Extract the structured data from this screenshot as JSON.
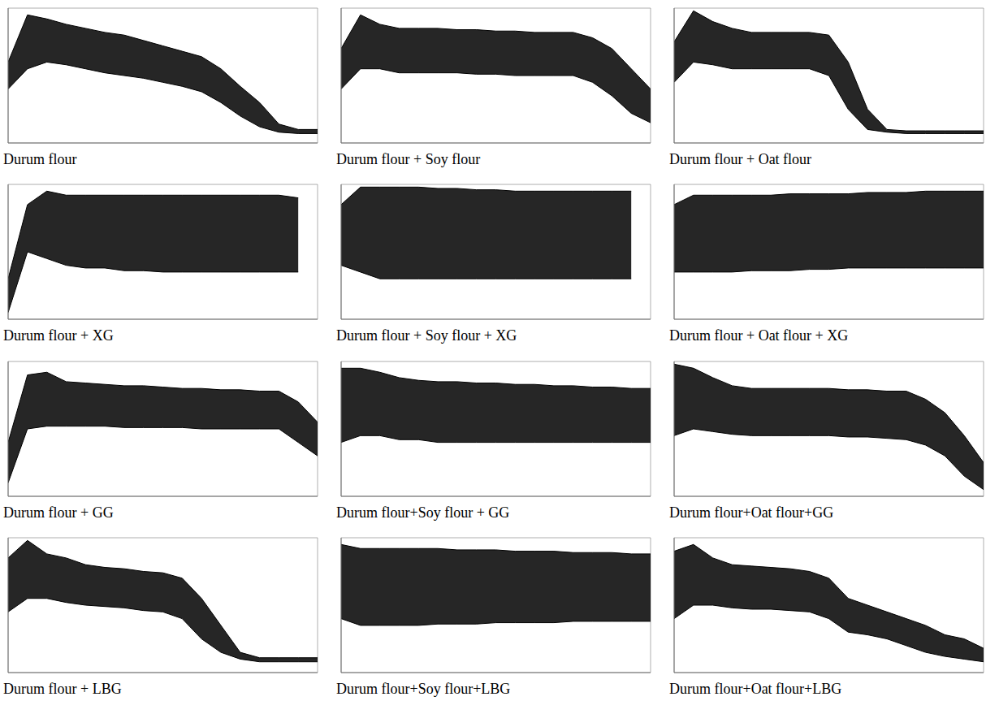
{
  "chart_data": [
    {
      "type": "area",
      "title": "Durum flour",
      "color": "#000000",
      "grid": true,
      "tick_labels": false,
      "xlim": [
        0,
        16
      ],
      "ylim": [
        0,
        100
      ],
      "xticks": [
        0,
        2,
        4,
        6,
        8,
        10,
        12,
        14,
        16
      ],
      "yticks": [
        0,
        20,
        40,
        60,
        80,
        100
      ],
      "x": [
        0,
        1,
        2,
        3,
        4,
        5,
        6,
        7,
        8,
        9,
        10,
        11,
        12,
        13,
        14,
        15,
        16
      ],
      "values": [
        [
          40,
          60
        ],
        [
          55,
          95
        ],
        [
          60,
          92
        ],
        [
          58,
          88
        ],
        [
          55,
          85
        ],
        [
          52,
          82
        ],
        [
          50,
          80
        ],
        [
          48,
          76
        ],
        [
          45,
          72
        ],
        [
          42,
          68
        ],
        [
          38,
          64
        ],
        [
          30,
          55
        ],
        [
          20,
          42
        ],
        [
          12,
          30
        ],
        [
          8,
          14
        ],
        [
          7,
          10
        ],
        [
          7,
          10
        ]
      ]
    },
    {
      "type": "area",
      "title": "Durum flour + Soy flour",
      "color": "#000000",
      "grid": true,
      "tick_labels": false,
      "xlim": [
        0,
        16
      ],
      "ylim": [
        0,
        100
      ],
      "xticks": [
        0,
        2,
        4,
        6,
        8,
        10,
        12,
        14,
        16
      ],
      "yticks": [
        0,
        20,
        40,
        60,
        80,
        100
      ],
      "x": [
        0,
        1,
        2,
        3,
        4,
        5,
        6,
        7,
        8,
        9,
        10,
        11,
        12,
        13,
        14,
        15,
        16
      ],
      "values": [
        [
          40,
          70
        ],
        [
          55,
          95
        ],
        [
          55,
          88
        ],
        [
          52,
          85
        ],
        [
          52,
          85
        ],
        [
          52,
          85
        ],
        [
          52,
          84
        ],
        [
          51,
          84
        ],
        [
          51,
          83
        ],
        [
          50,
          83
        ],
        [
          50,
          82
        ],
        [
          50,
          82
        ],
        [
          50,
          82
        ],
        [
          45,
          78
        ],
        [
          35,
          70
        ],
        [
          22,
          55
        ],
        [
          15,
          40
        ]
      ]
    },
    {
      "type": "area",
      "title": "Durum flour + Oat flour",
      "color": "#000000",
      "grid": true,
      "tick_labels": false,
      "xlim": [
        0,
        16
      ],
      "ylim": [
        0,
        100
      ],
      "xticks": [
        0,
        2,
        4,
        6,
        8,
        10,
        12,
        14,
        16
      ],
      "yticks": [
        0,
        20,
        40,
        60,
        80,
        100
      ],
      "x": [
        0,
        1,
        2,
        3,
        4,
        5,
        6,
        7,
        8,
        9,
        10,
        11,
        12,
        13,
        14,
        15,
        16
      ],
      "values": [
        [
          45,
          75
        ],
        [
          60,
          98
        ],
        [
          58,
          90
        ],
        [
          55,
          85
        ],
        [
          55,
          82
        ],
        [
          55,
          82
        ],
        [
          55,
          82
        ],
        [
          55,
          82
        ],
        [
          50,
          80
        ],
        [
          25,
          60
        ],
        [
          10,
          25
        ],
        [
          8,
          10
        ],
        [
          7,
          9
        ],
        [
          7,
          9
        ],
        [
          7,
          9
        ],
        [
          7,
          9
        ],
        [
          7,
          9
        ]
      ]
    },
    {
      "type": "area",
      "title": "Durum flour + XG",
      "color": "#000000",
      "grid": true,
      "tick_labels": false,
      "xlim": [
        0,
        16
      ],
      "ylim": [
        0,
        100
      ],
      "xticks": [
        0,
        2,
        4,
        6,
        8,
        10,
        12,
        14,
        16
      ],
      "yticks": [
        0,
        20,
        40,
        60,
        80,
        100
      ],
      "x": [
        0,
        1,
        2,
        3,
        4,
        5,
        6,
        7,
        8,
        9,
        10,
        11,
        12,
        13,
        14,
        15,
        16
      ],
      "values": [
        [
          5,
          30
        ],
        [
          50,
          85
        ],
        [
          45,
          95
        ],
        [
          40,
          92
        ],
        [
          38,
          92
        ],
        [
          38,
          92
        ],
        [
          36,
          92
        ],
        [
          36,
          92
        ],
        [
          35,
          92
        ],
        [
          35,
          92
        ],
        [
          35,
          92
        ],
        [
          35,
          92
        ],
        [
          35,
          92
        ],
        [
          35,
          92
        ],
        [
          35,
          92
        ],
        [
          35,
          90
        ],
        null
      ]
    },
    {
      "type": "area",
      "title": "Durum flour + Soy flour + XG",
      "color": "#000000",
      "grid": true,
      "tick_labels": false,
      "xlim": [
        0,
        16
      ],
      "ylim": [
        0,
        100
      ],
      "xticks": [
        0,
        2,
        4,
        6,
        8,
        10,
        12,
        14,
        16
      ],
      "yticks": [
        0,
        20,
        40,
        60,
        80,
        100
      ],
      "x": [
        0,
        1,
        2,
        3,
        4,
        5,
        6,
        7,
        8,
        9,
        10,
        11,
        12,
        13,
        14,
        15,
        16
      ],
      "values": [
        [
          40,
          85
        ],
        [
          35,
          98
        ],
        [
          30,
          98
        ],
        [
          30,
          98
        ],
        [
          30,
          98
        ],
        [
          30,
          97
        ],
        [
          30,
          97
        ],
        [
          30,
          96
        ],
        [
          30,
          96
        ],
        [
          30,
          95
        ],
        [
          30,
          95
        ],
        [
          30,
          95
        ],
        [
          30,
          95
        ],
        [
          30,
          95
        ],
        [
          30,
          95
        ],
        [
          30,
          95
        ],
        null
      ]
    },
    {
      "type": "area",
      "title": "Durum flour + Oat flour + XG",
      "color": "#000000",
      "grid": true,
      "tick_labels": false,
      "xlim": [
        0,
        16
      ],
      "ylim": [
        0,
        100
      ],
      "xticks": [
        0,
        2,
        4,
        6,
        8,
        10,
        12,
        14,
        16
      ],
      "yticks": [
        0,
        20,
        40,
        60,
        80,
        100
      ],
      "x": [
        0,
        1,
        2,
        3,
        4,
        5,
        6,
        7,
        8,
        9,
        10,
        11,
        12,
        13,
        14,
        15,
        16
      ],
      "values": [
        [
          35,
          85
        ],
        [
          35,
          92
        ],
        [
          35,
          92
        ],
        [
          35,
          92
        ],
        [
          36,
          92
        ],
        [
          36,
          92
        ],
        [
          36,
          93
        ],
        [
          37,
          93
        ],
        [
          37,
          93
        ],
        [
          38,
          93
        ],
        [
          38,
          94
        ],
        [
          38,
          94
        ],
        [
          38,
          94
        ],
        [
          38,
          95
        ],
        [
          38,
          95
        ],
        [
          38,
          95
        ],
        [
          38,
          95
        ]
      ]
    },
    {
      "type": "area",
      "title": "Durum flour + GG",
      "color": "#000000",
      "grid": true,
      "tick_labels": false,
      "xlim": [
        0,
        16
      ],
      "ylim": [
        0,
        100
      ],
      "xticks": [
        0,
        2,
        4,
        6,
        8,
        10,
        12,
        14,
        16
      ],
      "yticks": [
        0,
        20,
        40,
        60,
        80,
        100
      ],
      "x": [
        0,
        1,
        2,
        3,
        4,
        5,
        6,
        7,
        8,
        9,
        10,
        11,
        12,
        13,
        14,
        15,
        16
      ],
      "values": [
        [
          10,
          40
        ],
        [
          50,
          90
        ],
        [
          52,
          92
        ],
        [
          52,
          85
        ],
        [
          52,
          84
        ],
        [
          52,
          83
        ],
        [
          51,
          82
        ],
        [
          51,
          82
        ],
        [
          51,
          81
        ],
        [
          51,
          80
        ],
        [
          50,
          80
        ],
        [
          50,
          79
        ],
        [
          50,
          79
        ],
        [
          50,
          78
        ],
        [
          50,
          78
        ],
        [
          40,
          70
        ],
        [
          30,
          55
        ]
      ]
    },
    {
      "type": "area",
      "title": "Durum flour+Soy flour + GG",
      "color": "#000000",
      "grid": true,
      "tick_labels": false,
      "xlim": [
        0,
        16
      ],
      "ylim": [
        0,
        100
      ],
      "xticks": [
        0,
        2,
        4,
        6,
        8,
        10,
        12,
        14,
        16
      ],
      "yticks": [
        0,
        20,
        40,
        60,
        80,
        100
      ],
      "x": [
        0,
        1,
        2,
        3,
        4,
        5,
        6,
        7,
        8,
        9,
        10,
        11,
        12,
        13,
        14,
        15,
        16
      ],
      "values": [
        [
          40,
          95
        ],
        [
          45,
          95
        ],
        [
          45,
          92
        ],
        [
          42,
          88
        ],
        [
          42,
          86
        ],
        [
          40,
          85
        ],
        [
          40,
          85
        ],
        [
          40,
          84
        ],
        [
          40,
          84
        ],
        [
          40,
          83
        ],
        [
          40,
          83
        ],
        [
          40,
          82
        ],
        [
          40,
          82
        ],
        [
          40,
          81
        ],
        [
          40,
          81
        ],
        [
          40,
          80
        ],
        [
          40,
          80
        ]
      ]
    },
    {
      "type": "area",
      "title": "Durum flour+Oat flour+GG",
      "color": "#000000",
      "grid": true,
      "tick_labels": false,
      "xlim": [
        0,
        16
      ],
      "ylim": [
        0,
        100
      ],
      "xticks": [
        0,
        2,
        4,
        6,
        8,
        10,
        12,
        14,
        16
      ],
      "yticks": [
        0,
        20,
        40,
        60,
        80,
        100
      ],
      "x": [
        0,
        1,
        2,
        3,
        4,
        5,
        6,
        7,
        8,
        9,
        10,
        11,
        12,
        13,
        14,
        15,
        16
      ],
      "values": [
        [
          45,
          98
        ],
        [
          50,
          95
        ],
        [
          48,
          88
        ],
        [
          46,
          82
        ],
        [
          45,
          80
        ],
        [
          45,
          80
        ],
        [
          45,
          80
        ],
        [
          45,
          80
        ],
        [
          45,
          80
        ],
        [
          44,
          79
        ],
        [
          44,
          79
        ],
        [
          43,
          78
        ],
        [
          42,
          78
        ],
        [
          38,
          72
        ],
        [
          30,
          62
        ],
        [
          15,
          45
        ],
        [
          5,
          25
        ]
      ]
    },
    {
      "type": "area",
      "title": "Durum flour + LBG",
      "color": "#000000",
      "grid": true,
      "tick_labels": false,
      "xlim": [
        0,
        16
      ],
      "ylim": [
        0,
        100
      ],
      "xticks": [
        0,
        2,
        4,
        6,
        8,
        10,
        12,
        14,
        16
      ],
      "yticks": [
        0,
        20,
        40,
        60,
        80,
        100
      ],
      "x": [
        0,
        1,
        2,
        3,
        4,
        5,
        6,
        7,
        8,
        9,
        10,
        11,
        12,
        13,
        14,
        15,
        16
      ],
      "values": [
        [
          45,
          85
        ],
        [
          55,
          98
        ],
        [
          55,
          88
        ],
        [
          52,
          85
        ],
        [
          50,
          80
        ],
        [
          49,
          78
        ],
        [
          48,
          77
        ],
        [
          46,
          75
        ],
        [
          45,
          74
        ],
        [
          40,
          70
        ],
        [
          25,
          55
        ],
        [
          15,
          35
        ],
        [
          10,
          15
        ],
        [
          8,
          11
        ],
        [
          8,
          11
        ],
        [
          8,
          11
        ],
        [
          8,
          11
        ]
      ]
    },
    {
      "type": "area",
      "title": "Durum flour+Soy flour+LBG",
      "color": "#000000",
      "grid": true,
      "tick_labels": false,
      "xlim": [
        0,
        16
      ],
      "ylim": [
        0,
        100
      ],
      "xticks": [
        0,
        2,
        4,
        6,
        8,
        10,
        12,
        14,
        16
      ],
      "yticks": [
        0,
        20,
        40,
        60,
        80,
        100
      ],
      "x": [
        0,
        1,
        2,
        3,
        4,
        5,
        6,
        7,
        8,
        9,
        10,
        11,
        12,
        13,
        14,
        15,
        16
      ],
      "values": [
        [
          40,
          95
        ],
        [
          35,
          92
        ],
        [
          35,
          92
        ],
        [
          35,
          92
        ],
        [
          35,
          92
        ],
        [
          36,
          92
        ],
        [
          36,
          91
        ],
        [
          36,
          91
        ],
        [
          37,
          91
        ],
        [
          37,
          90
        ],
        [
          37,
          90
        ],
        [
          37,
          90
        ],
        [
          38,
          89
        ],
        [
          38,
          89
        ],
        [
          38,
          89
        ],
        [
          38,
          88
        ],
        [
          38,
          88
        ]
      ]
    },
    {
      "type": "area",
      "title": "Durum flour+Oat flour+LBG",
      "color": "#000000",
      "grid": true,
      "tick_labels": false,
      "xlim": [
        0,
        16
      ],
      "ylim": [
        0,
        100
      ],
      "xticks": [
        0,
        2,
        4,
        6,
        8,
        10,
        12,
        14,
        16
      ],
      "yticks": [
        0,
        20,
        40,
        60,
        80,
        100
      ],
      "x": [
        0,
        1,
        2,
        3,
        4,
        5,
        6,
        7,
        8,
        9,
        10,
        11,
        12,
        13,
        14,
        15,
        16
      ],
      "values": [
        [
          40,
          90
        ],
        [
          50,
          95
        ],
        [
          50,
          85
        ],
        [
          48,
          80
        ],
        [
          47,
          79
        ],
        [
          47,
          78
        ],
        [
          46,
          77
        ],
        [
          45,
          75
        ],
        [
          40,
          70
        ],
        [
          30,
          55
        ],
        [
          28,
          50
        ],
        [
          25,
          45
        ],
        [
          20,
          40
        ],
        [
          15,
          35
        ],
        [
          12,
          28
        ],
        [
          10,
          25
        ],
        [
          8,
          18
        ]
      ]
    }
  ]
}
